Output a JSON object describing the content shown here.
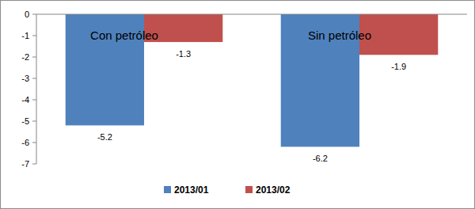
{
  "chart_data": {
    "type": "bar",
    "categories": [
      "Con petróleo",
      "Sin petróleo"
    ],
    "series": [
      {
        "name": "2013/01",
        "color": "#4f81bd",
        "values": [
          -5.2,
          -6.2
        ]
      },
      {
        "name": "2013/02",
        "color": "#c0504d",
        "values": [
          -1.3,
          -1.9
        ]
      }
    ],
    "ylim": [
      -7,
      0
    ],
    "yticks": [
      -7,
      -6,
      -5,
      -4,
      -3,
      -2,
      -1,
      0
    ],
    "grid": false,
    "legend": "bottom",
    "data_labels": true
  }
}
